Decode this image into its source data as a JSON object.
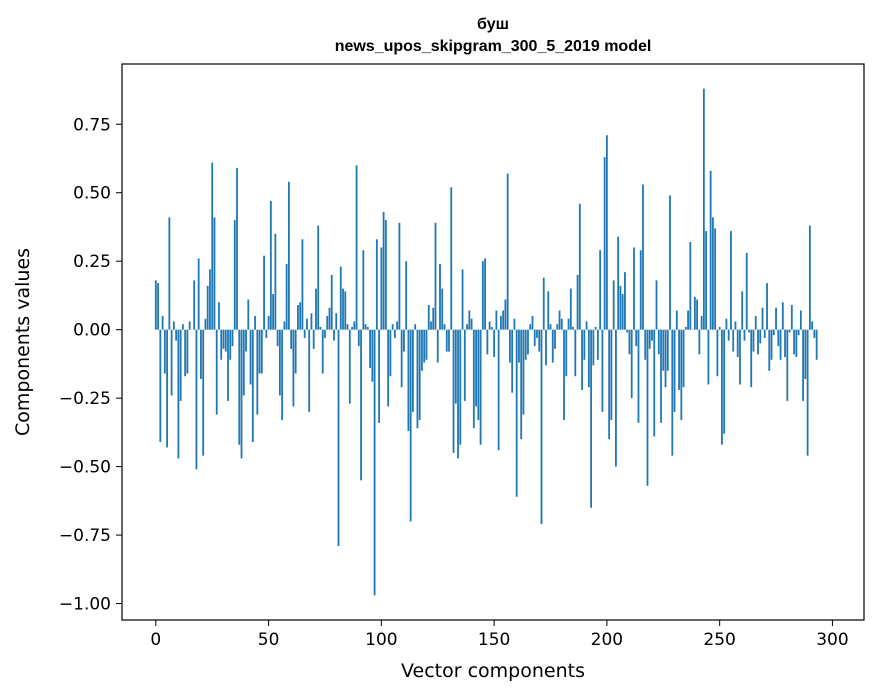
{
  "chart_data": {
    "type": "bar",
    "title": "буш",
    "subtitle": "news_upos_skipgram_300_5_2019 model",
    "xlabel": "Vector components",
    "ylabel": "Components values",
    "xlim": [
      -15,
      314
    ],
    "ylim": [
      -1.06,
      0.97
    ],
    "xticks": [
      0,
      50,
      100,
      150,
      200,
      250,
      300
    ],
    "xtick_labels": [
      "0",
      "50",
      "100",
      "150",
      "200",
      "250",
      "300"
    ],
    "yticks": [
      -1.0,
      -0.75,
      -0.5,
      -0.25,
      0.0,
      0.25,
      0.5,
      0.75
    ],
    "ytick_labels": [
      "−1.00",
      "−0.75",
      "−0.50",
      "−0.25",
      "0.00",
      "0.25",
      "0.50",
      "0.75"
    ],
    "grid": false,
    "bar_color": "#1f77b4",
    "values": [
      0.18,
      0.17,
      -0.41,
      0.05,
      -0.16,
      -0.43,
      0.41,
      -0.24,
      0.03,
      -0.04,
      -0.47,
      -0.26,
      0.02,
      -0.17,
      -0.16,
      0.03,
      0.0,
      0.18,
      -0.51,
      0.26,
      -0.18,
      -0.46,
      0.04,
      0.16,
      0.22,
      0.61,
      0.41,
      -0.31,
      0.1,
      -0.11,
      -0.07,
      -0.08,
      -0.26,
      -0.11,
      -0.06,
      0.4,
      0.59,
      -0.42,
      -0.47,
      -0.24,
      -0.08,
      0.11,
      -0.2,
      -0.41,
      0.05,
      -0.31,
      -0.16,
      -0.16,
      0.27,
      -0.03,
      0.05,
      0.47,
      0.13,
      0.35,
      -0.06,
      -0.24,
      -0.33,
      0.03,
      0.24,
      0.54,
      -0.07,
      -0.28,
      -0.16,
      0.09,
      0.1,
      0.33,
      -0.03,
      0.04,
      -0.3,
      0.06,
      -0.07,
      0.15,
      0.38,
      0.01,
      -0.16,
      -0.03,
      0.05,
      0.08,
      0.2,
      -0.04,
      0.06,
      -0.79,
      0.23,
      0.15,
      0.14,
      0.02,
      -0.27,
      0.01,
      0.03,
      0.6,
      -0.06,
      -0.55,
      0.29,
      0.02,
      0.01,
      -0.14,
      -0.19,
      -0.97,
      0.33,
      -0.34,
      0.3,
      0.43,
      0.4,
      -0.28,
      -0.17,
      0.02,
      -0.03,
      0.03,
      0.39,
      -0.21,
      -0.08,
      0.25,
      -0.37,
      -0.7,
      -0.3,
      0.02,
      -0.36,
      -0.33,
      -0.15,
      -0.12,
      -0.11,
      0.09,
      0.03,
      0.08,
      0.39,
      -0.12,
      0.24,
      0.15,
      0.02,
      -0.08,
      -0.08,
      0.52,
      -0.45,
      -0.27,
      -0.47,
      -0.42,
      0.22,
      -0.26,
      0.02,
      0.07,
      0.04,
      -0.36,
      -0.28,
      -0.33,
      -0.42,
      0.25,
      0.26,
      -0.09,
      0.03,
      0.01,
      -0.1,
      0.07,
      -0.44,
      0.05,
      0.07,
      0.11,
      0.57,
      -0.12,
      -0.23,
      0.04,
      -0.61,
      -0.12,
      -0.4,
      -0.31,
      -0.11,
      -0.09,
      0.02,
      0.05,
      -0.06,
      -0.03,
      -0.08,
      -0.71,
      0.19,
      -0.13,
      0.14,
      0.02,
      -0.12,
      -0.07,
      0.02,
      0.07,
      0.04,
      -0.33,
      -0.17,
      0.04,
      0.15,
      0.01,
      -0.17,
      0.2,
      0.46,
      -0.22,
      -0.11,
      0.03,
      -0.21,
      -0.65,
      -0.13,
      0.01,
      -0.11,
      0.29,
      -0.3,
      0.63,
      0.71,
      -0.4,
      -0.33,
      0.18,
      -0.5,
      0.34,
      0.16,
      0.13,
      0.21,
      -0.01,
      -0.09,
      -0.25,
      0.3,
      -0.06,
      -0.34,
      0.29,
      0.53,
      -0.11,
      -0.57,
      -0.07,
      -0.04,
      -0.39,
      0.18,
      -0.09,
      -0.34,
      -0.15,
      -0.21,
      -0.15,
      0.49,
      -0.46,
      -0.3,
      0.07,
      -0.22,
      -0.33,
      -0.21,
      0.01,
      0.07,
      0.32,
      0.0,
      0.12,
      0.11,
      -0.09,
      0.05,
      0.88,
      0.36,
      -0.2,
      0.58,
      0.41,
      0.37,
      -0.17,
      0.01,
      -0.42,
      -0.38,
      0.04,
      -0.04,
      0.36,
      -0.08,
      0.03,
      -0.1,
      -0.2,
      0.14,
      -0.04,
      0.28,
      -0.01,
      -0.21,
      -0.08,
      0.05,
      -0.09,
      -0.05,
      0.08,
      -0.03,
      0.17,
      -0.15,
      -0.11,
      -0.02,
      0.08,
      -0.06,
      -0.11,
      0.1,
      -0.1,
      -0.26,
      -0.01,
      0.09,
      -0.09,
      -0.1,
      -0.02,
      0.07,
      -0.26,
      -0.18,
      -0.46,
      0.38,
      0.03,
      -0.03,
      -0.11
    ]
  }
}
